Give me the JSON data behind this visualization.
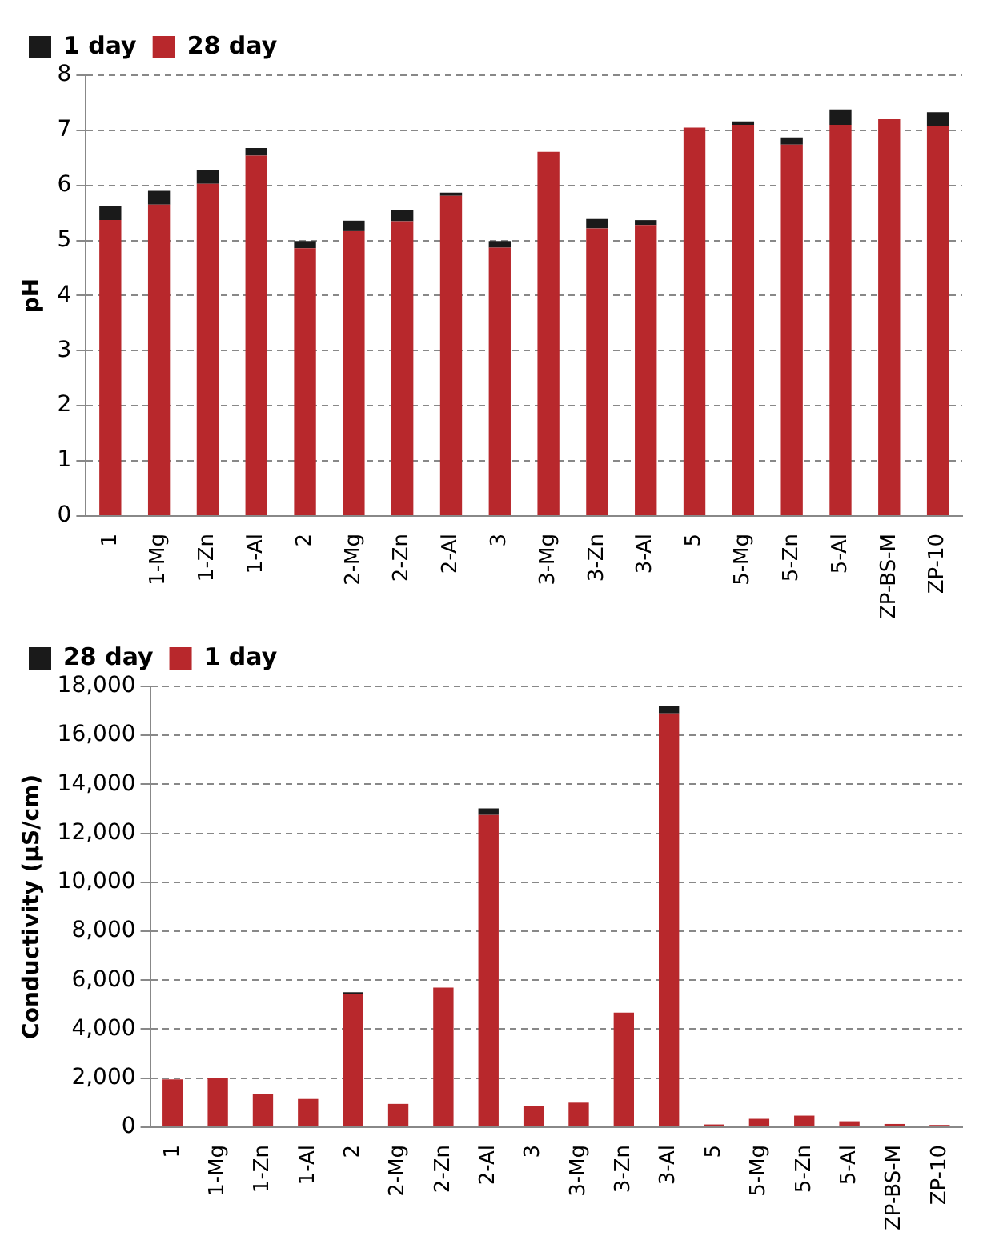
{
  "chart_data": [
    {
      "type": "bar",
      "ylabel": "pH",
      "categories": [
        "1",
        "1-Mg",
        "1-Zn",
        "1-Al",
        "2",
        "2-Mg",
        "2-Zn",
        "2-Al",
        "3",
        "3-Mg",
        "3-Zn",
        "3-Al",
        "5",
        "5-Mg",
        "5-Zn",
        "5-Al",
        "ZP-BS-M",
        "ZP-10"
      ],
      "stacked": true,
      "series": [
        {
          "name": "28 day",
          "color": "#b8282c",
          "values": [
            5.37,
            5.65,
            6.03,
            6.54,
            4.86,
            5.17,
            5.35,
            5.81,
            4.87,
            6.61,
            5.22,
            5.28,
            7.05,
            7.1,
            6.74,
            7.1,
            7.2,
            7.08
          ]
        },
        {
          "name": "1 day",
          "color": "#1a1a1a",
          "values": [
            0.25,
            0.25,
            0.25,
            0.14,
            0.13,
            0.19,
            0.2,
            0.06,
            0.12,
            0,
            0.17,
            0.09,
            0,
            0.06,
            0.13,
            0.28,
            0,
            0.25
          ]
        }
      ],
      "ylim": [
        0,
        8
      ],
      "yticks": [
        0,
        1,
        2,
        3,
        4,
        5,
        6,
        7,
        8
      ],
      "grid": "y",
      "legend": "top left"
    },
    {
      "type": "bar",
      "ylabel": "Conductivity (µS/cm)",
      "categories": [
        "1",
        "1-Mg",
        "1-Zn",
        "1-Al",
        "2",
        "2-Mg",
        "2-Zn",
        "2-Al",
        "3",
        "3-Mg",
        "3-Zn",
        "3-Al",
        "5",
        "5-Mg",
        "5-Zn",
        "5-Al",
        "ZP-BS-M",
        "ZP-10"
      ],
      "stacked": true,
      "series": [
        {
          "name": "1 day",
          "color": "#b8282c",
          "values": [
            1950,
            2000,
            1350,
            1150,
            5430,
            950,
            5700,
            12750,
            880,
            1000,
            4680,
            16900,
            110,
            340,
            470,
            240,
            130,
            90
          ]
        },
        {
          "name": "28 day",
          "color": "#1a1a1a",
          "values": [
            0,
            0,
            0,
            0,
            80,
            0,
            0,
            270,
            0,
            0,
            0,
            300,
            0,
            0,
            0,
            0,
            0,
            0
          ]
        }
      ],
      "ylim": [
        0,
        18000
      ],
      "yticks": [
        {
          "value": 0,
          "label": "0"
        },
        {
          "value": 2000,
          "label": "2,000"
        },
        {
          "value": 4000,
          "label": "4,000"
        },
        {
          "value": 6000,
          "label": "6,000"
        },
        {
          "value": 8000,
          "label": "8,000"
        },
        {
          "value": 10000,
          "label": "10,000"
        },
        {
          "value": 12000,
          "label": "12,000"
        },
        {
          "value": 14000,
          "label": "14,000"
        },
        {
          "value": 16000,
          "label": "16,000"
        },
        {
          "value": 18000,
          "label": "18,000"
        }
      ],
      "grid": "y",
      "legend": "top left"
    }
  ]
}
